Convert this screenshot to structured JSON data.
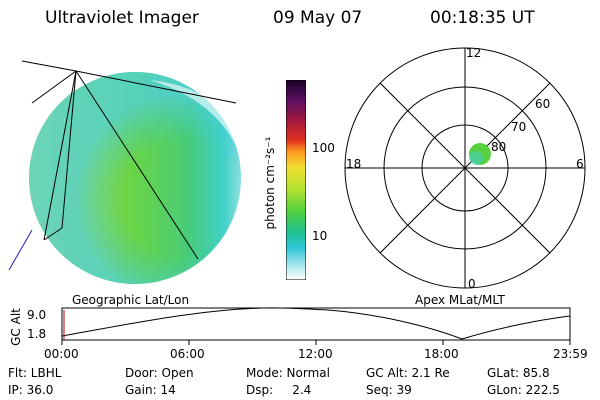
{
  "header": {
    "title": "Ultraviolet Imager",
    "date": "09 May 07",
    "time": "00:18:35 UT"
  },
  "colorbar": {
    "label": "photon cm⁻²s⁻¹",
    "tick_100": "100",
    "tick_10": "10",
    "colors": [
      "#2b0038",
      "#551060",
      "#8a1850",
      "#c01830",
      "#e84020",
      "#ff9a20",
      "#f0e030",
      "#b0e030",
      "#58d040",
      "#20c090",
      "#30c8d8",
      "#90e0e8",
      "#d0f0f0",
      "#ffffff"
    ]
  },
  "polar": {
    "mlt_top": "12",
    "mlt_left": "18",
    "mlt_right": "6",
    "mlt_bottom": "0",
    "lat_60": "60",
    "lat_70": "70",
    "lat_80": "80"
  },
  "timeline": {
    "ylabel": "GC Alt",
    "y_top": "9.0",
    "y_bottom": "1.8",
    "left_title": "Geographic Lat/Lon",
    "right_title": "Apex MLat/MLT",
    "ticks": [
      "00:00",
      "06:00",
      "12:00",
      "18:00",
      "23:59"
    ]
  },
  "footer": {
    "filter": "Flt: LBHL",
    "door": "Door: Open",
    "mode": "Mode: Normal",
    "gc_alt": "GC Alt: 2.1 Re",
    "glat": "GLat:  85.8",
    "ip": "IP: 36.0",
    "gain": "Gain: 14",
    "dsp": "Dsp:     2.4",
    "seq": "Seq: 39",
    "glon": "GLon: 222.5"
  }
}
